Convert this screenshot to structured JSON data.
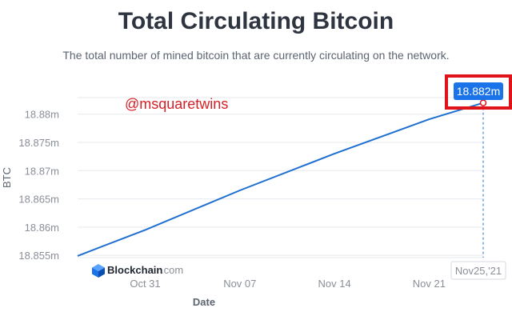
{
  "page": {
    "title": "Total Circulating Bitcoin",
    "subtitle": "The total number of mined bitcoin that are currently circulating on the network."
  },
  "watermark": "@msquaretwins",
  "brand": {
    "name": "Blockchain",
    "suffix": ".com"
  },
  "tooltip": {
    "value_label": "18.882m",
    "date_label": "Nov25,'21"
  },
  "colors": {
    "line": "#1f6fd1",
    "badge": "#1a73e8",
    "highlight_box": "#e0131b",
    "brand_dark": "#1f2630",
    "brand_muted": "#8a8f98"
  },
  "chart_data": {
    "type": "line",
    "title": "Total Circulating Bitcoin",
    "subtitle": "The total number of mined bitcoin that are currently circulating on the network.",
    "xlabel": "Date",
    "ylabel": "BTC",
    "y_ticks": [
      {
        "value": 18.855,
        "label": "18.855m"
      },
      {
        "value": 18.86,
        "label": "18.86m"
      },
      {
        "value": 18.865,
        "label": "18.865m"
      },
      {
        "value": 18.87,
        "label": "18.87m"
      },
      {
        "value": 18.875,
        "label": "18.875m"
      },
      {
        "value": 18.88,
        "label": "18.88m"
      }
    ],
    "x_ticks": [
      {
        "date": "2021-10-31",
        "label": "Oct 31"
      },
      {
        "date": "2021-11-07",
        "label": "Nov 07"
      },
      {
        "date": "2021-11-14",
        "label": "Nov 14"
      },
      {
        "date": "2021-11-21",
        "label": "Nov 21"
      }
    ],
    "xlim": [
      "2021-10-26",
      "2021-11-25"
    ],
    "ylim": [
      18.8546,
      18.8835
    ],
    "grid": true,
    "series": [
      {
        "points": [
          {
            "x": "2021-10-26",
            "y": 18.8549
          },
          {
            "x": "2021-10-31",
            "y": 18.8595
          },
          {
            "x": "2021-11-07",
            "y": 18.8665
          },
          {
            "x": "2021-11-14",
            "y": 18.873
          },
          {
            "x": "2021-11-21",
            "y": 18.8791
          },
          {
            "x": "2021-11-25",
            "y": 18.882
          }
        ]
      }
    ]
  }
}
